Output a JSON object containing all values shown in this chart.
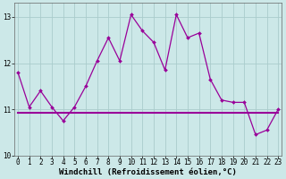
{
  "xlabel": "Windchill (Refroidissement éolien,°C)",
  "x_values": [
    0,
    1,
    2,
    3,
    4,
    5,
    6,
    7,
    8,
    9,
    10,
    11,
    12,
    13,
    14,
    15,
    16,
    17,
    18,
    19,
    20,
    21,
    22,
    23
  ],
  "y_main": [
    11.8,
    11.05,
    11.4,
    11.05,
    10.75,
    11.05,
    11.5,
    12.05,
    12.55,
    12.05,
    13.05,
    12.7,
    12.45,
    11.85,
    13.05,
    12.55,
    12.65,
    11.65,
    11.2,
    11.15,
    11.15,
    10.45,
    10.55,
    11.0
  ],
  "y_flat": [
    10.93,
    10.93,
    10.93,
    10.93,
    10.93,
    10.93,
    10.93,
    10.93,
    10.93,
    10.93,
    10.93,
    10.93,
    10.93,
    10.93,
    10.93,
    10.93,
    10.93,
    10.93,
    10.93,
    10.93,
    10.93,
    10.93,
    10.93,
    10.93
  ],
  "ylim": [
    10.0,
    13.3
  ],
  "yticks": [
    10,
    11,
    12,
    13
  ],
  "xticks": [
    0,
    1,
    2,
    3,
    4,
    5,
    6,
    7,
    8,
    9,
    10,
    11,
    12,
    13,
    14,
    15,
    16,
    17,
    18,
    19,
    20,
    21,
    22,
    23
  ],
  "line_color": "#990099",
  "bg_color": "#cce8e8",
  "grid_color": "#aacccc",
  "tick_fontsize": 5.5,
  "xlabel_fontsize": 6.5
}
